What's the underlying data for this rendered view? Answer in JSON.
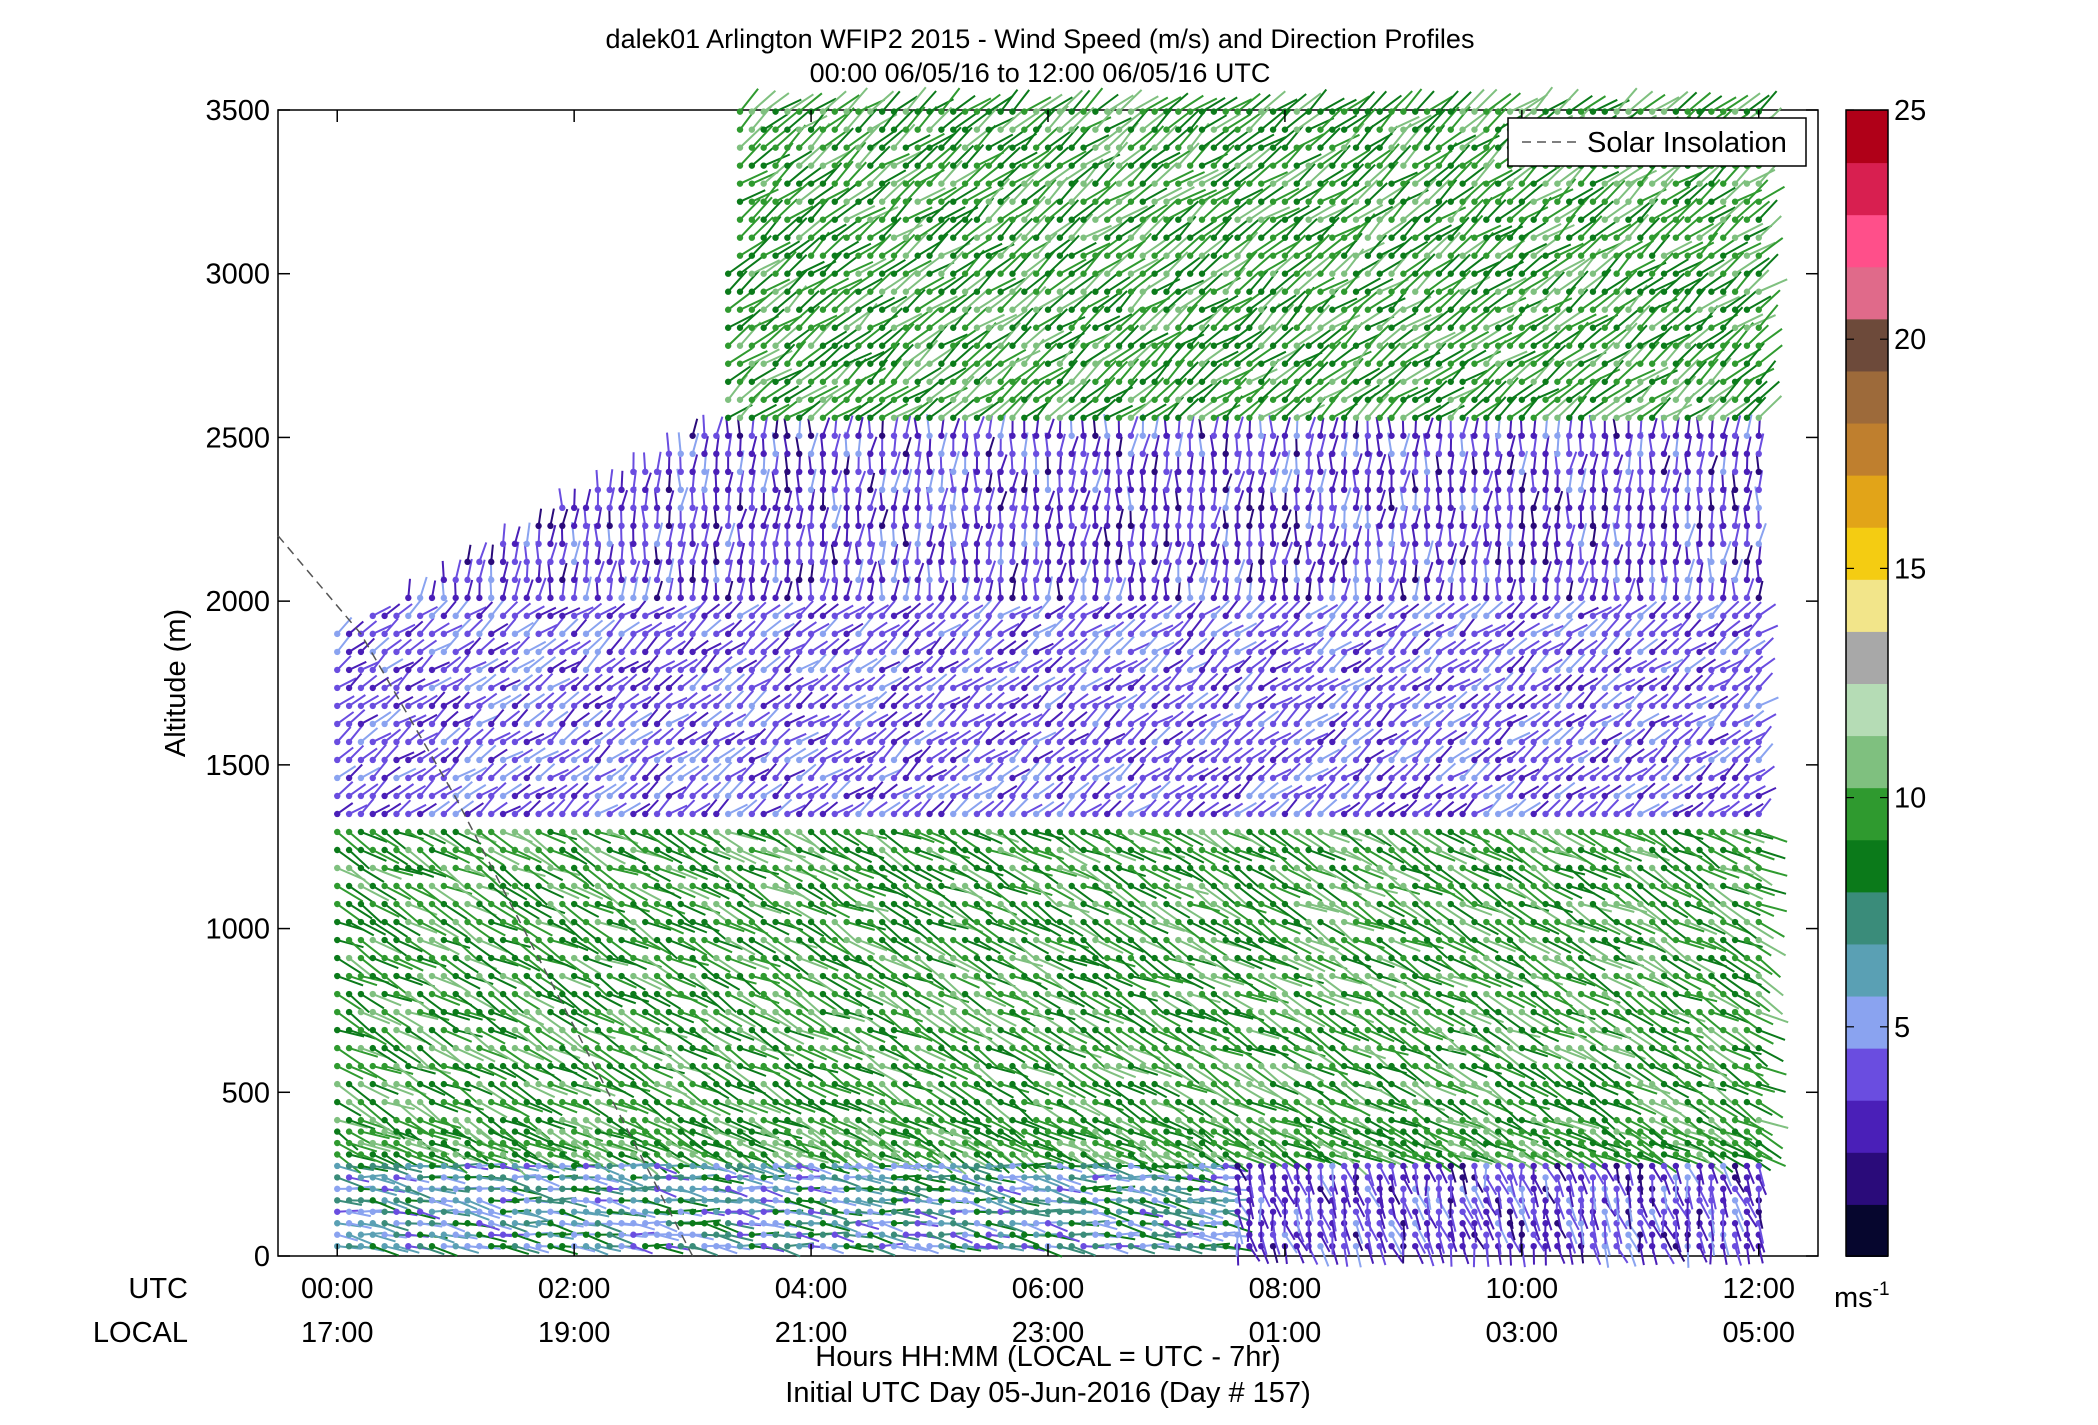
{
  "chart_data": {
    "type": "wind-barb-profile",
    "title_line1": "dalek01 Arlington WFIP2 2015 - Wind Speed (m/s) and Direction Profiles",
    "title_line2": "00:00 06/05/16 to 12:00 06/05/16  UTC",
    "ylabel": "Altitude (m)",
    "ylim": [
      0,
      3500
    ],
    "yticks": [
      "0",
      "500",
      "1000",
      "1500",
      "2000",
      "2500",
      "3000",
      "3500"
    ],
    "xlim_hours": [
      -0.5,
      12.5
    ],
    "row_label_utc": "UTC",
    "row_label_local": "LOCAL",
    "utc_ticks": [
      "00:00",
      "02:00",
      "04:00",
      "06:00",
      "08:00",
      "10:00",
      "12:00"
    ],
    "local_ticks": [
      "17:00",
      "19:00",
      "21:00",
      "23:00",
      "01:00",
      "03:00",
      "05:00"
    ],
    "tick_hours": [
      0,
      2,
      4,
      6,
      8,
      10,
      12
    ],
    "xlabel_line1": "Hours HH:MM  (LOCAL = UTC - 7hr)",
    "xlabel_line2": "Initial UTC Day 05-Jun-2016 (Day # 157)",
    "legend": {
      "solar": "Solar Insolation",
      "placement": "top-right"
    },
    "colorbar": {
      "range": [
        0,
        25
      ],
      "ticks": [
        "5",
        "10",
        "15",
        "20",
        "25"
      ],
      "unit_text": "ms",
      "unit_exp": "-1",
      "colors": [
        "#06062e",
        "#2a0b7a",
        "#4a1fb8",
        "#6a4de0",
        "#8aa3f0",
        "#5aa0b4",
        "#3a8c7a",
        "#0b7a1a",
        "#2f9a2f",
        "#7fc07f",
        "#b5dcb5",
        "#a8a8a8",
        "#f2e58a",
        "#f4cc12",
        "#e2a418",
        "#bf7f2e",
        "#9d6a3a",
        "#6d4a3a",
        "#e06a8a",
        "#ff4f8a",
        "#d81f50",
        "#b00018"
      ]
    },
    "solar_line": {
      "t": [
        -0.5,
        0.2,
        1.0,
        2.0,
        3.0
      ],
      "alt": [
        2200,
        1900,
        1400,
        700,
        0
      ],
      "color": "#555555"
    },
    "wind_field": {
      "t_start": 0,
      "t_end": 12,
      "dt": 0.1,
      "alt_top_by_time": [
        {
          "t": 0,
          "alt": 1900
        },
        {
          "t": 3.2,
          "alt": 2550
        },
        {
          "t": 3.4,
          "alt": 3500
        },
        {
          "t": 12,
          "alt": 3500
        }
      ],
      "regimes": [
        {
          "alt": [
            0,
            300
          ],
          "speed": [
            4,
            9
          ],
          "dir": "W"
        },
        {
          "alt": [
            300,
            1350
          ],
          "speed": [
            8,
            11
          ],
          "dir": "SW"
        },
        {
          "alt": [
            1350,
            2000
          ],
          "speed": [
            3,
            5
          ],
          "dir": "NW"
        },
        {
          "alt": [
            2000,
            2550
          ],
          "speed": [
            2,
            5
          ],
          "dir": "N"
        },
        {
          "alt": [
            2550,
            3500
          ],
          "speed": [
            8,
            11
          ],
          "dir": "NW"
        }
      ]
    }
  }
}
